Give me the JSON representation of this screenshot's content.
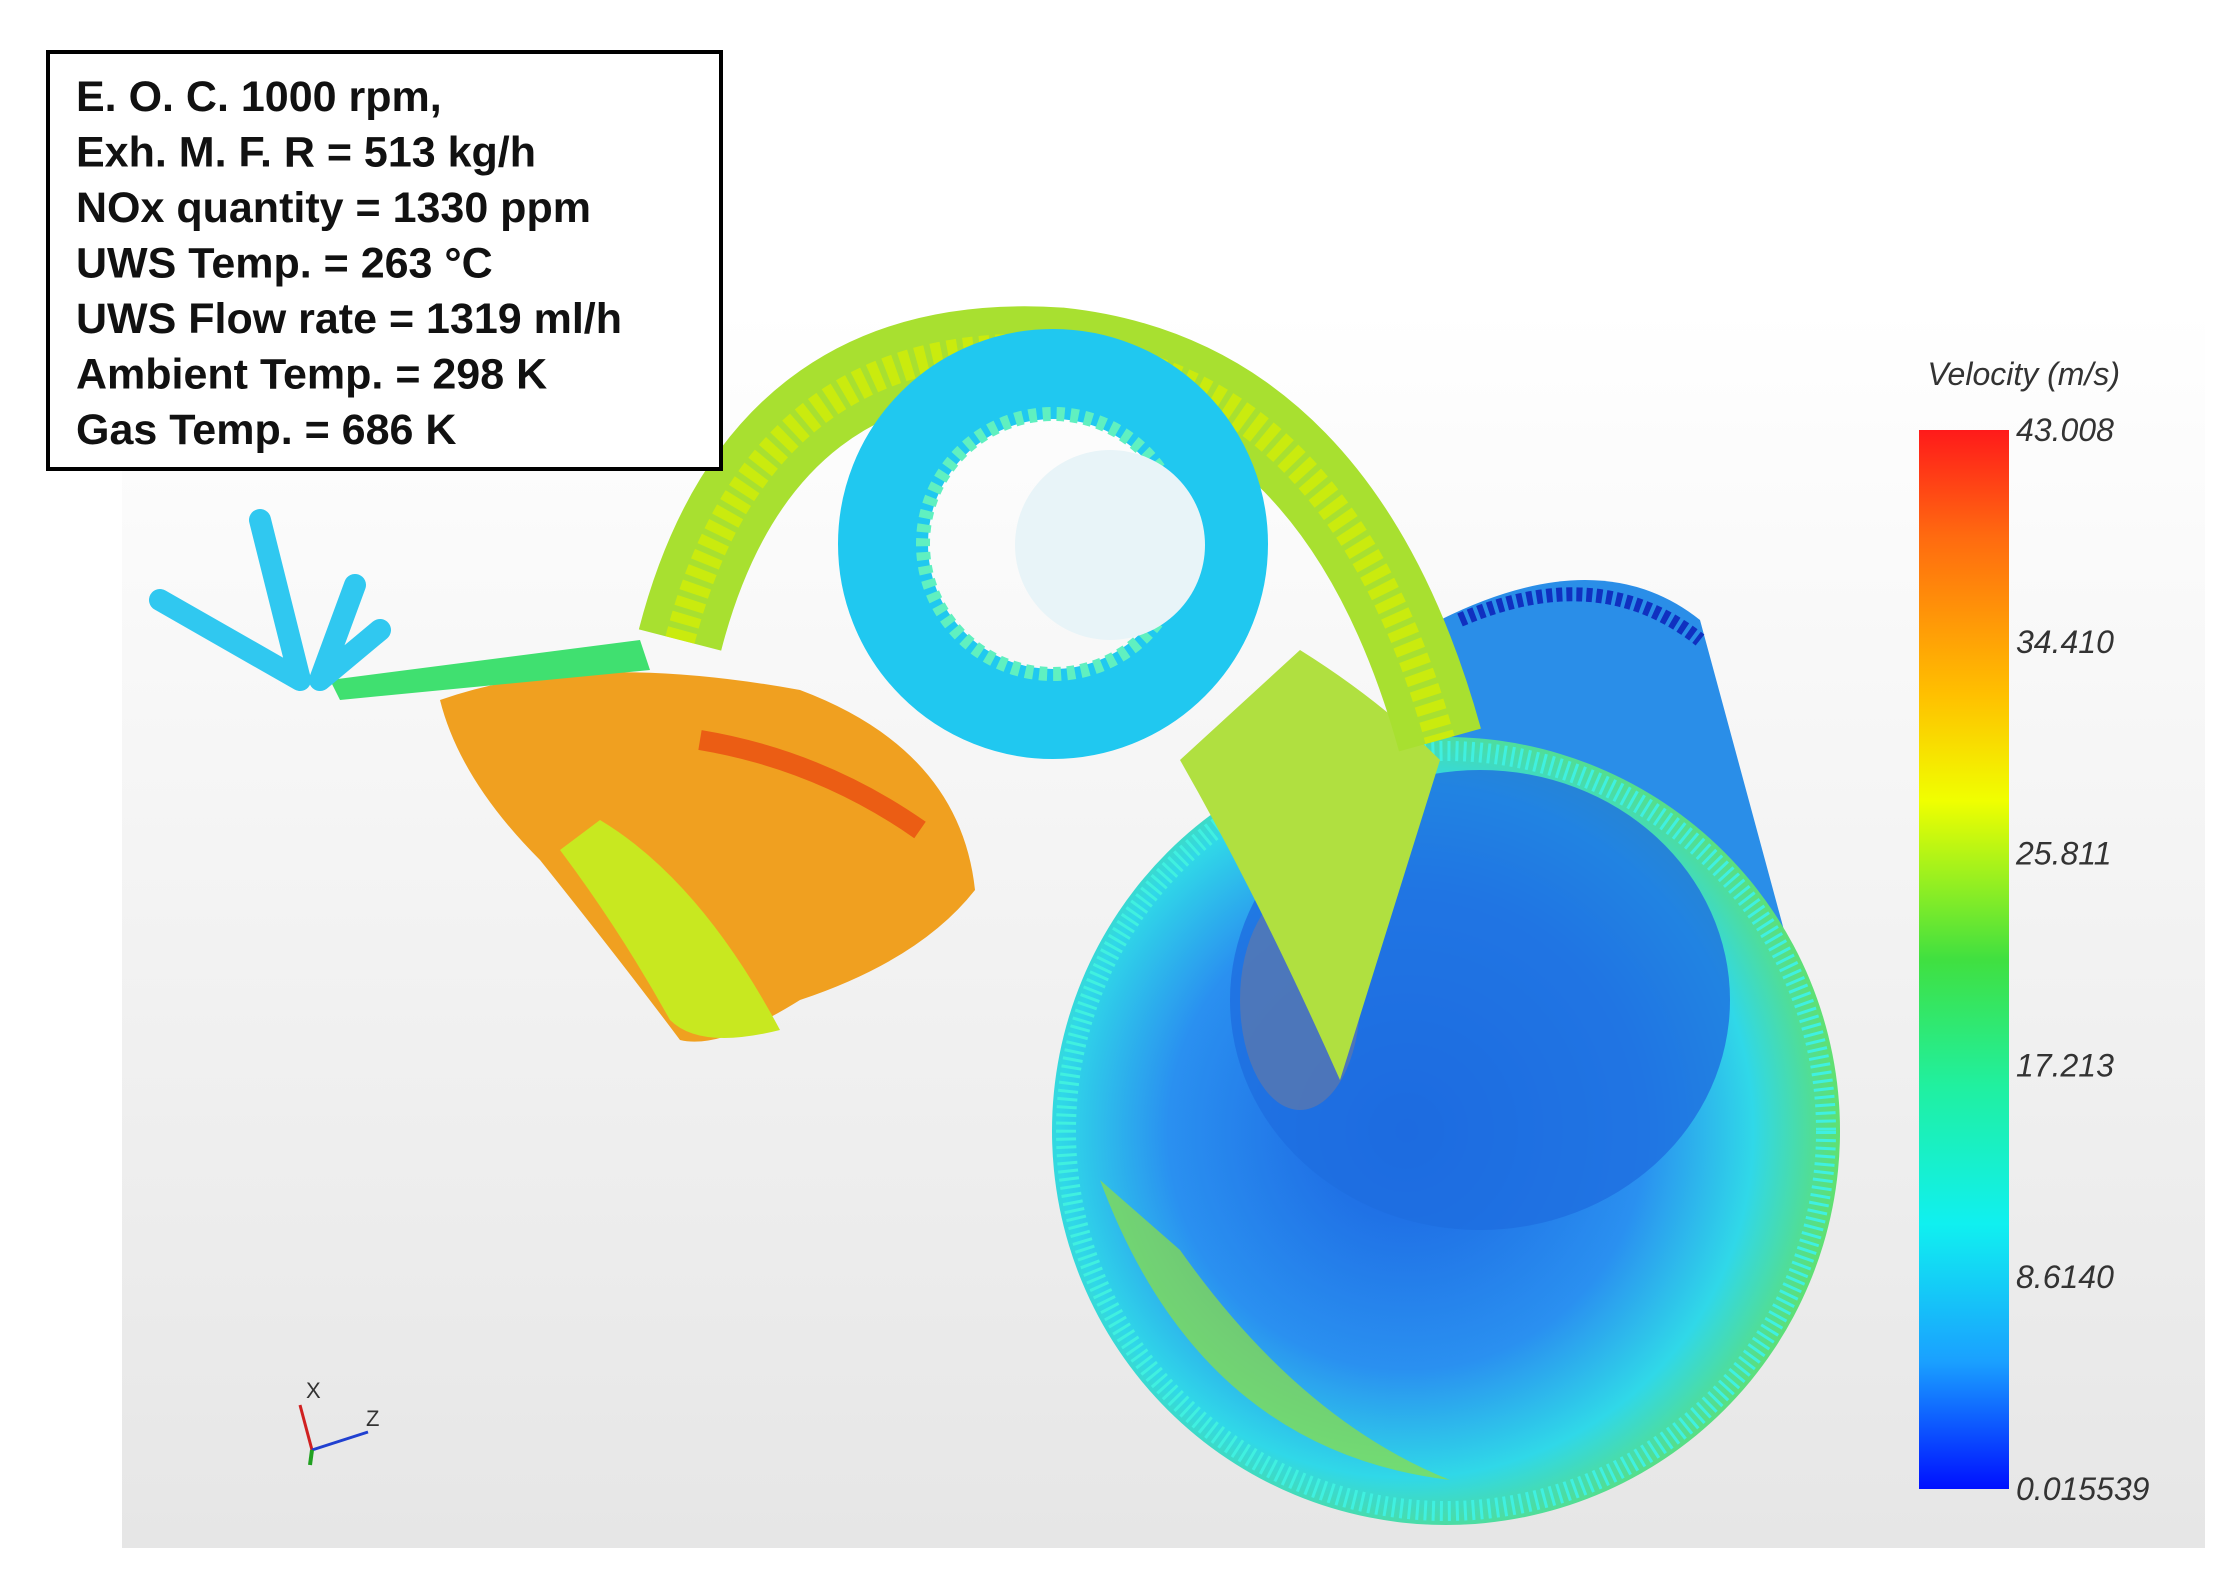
{
  "info_box": {
    "lines": [
      "E. O. C. 1000 rpm,",
      "Exh. M. F. R = 513 kg/h",
      "NOx quantity = 1330 ppm",
      "UWS Temp. = 263 °C",
      "UWS Flow rate = 1319 ml/h",
      "Ambient Temp. = 298 K",
      "Gas Temp. = 686 K"
    ]
  },
  "colorbar": {
    "title": "Velocity (m/s)",
    "ticks": [
      "43.008",
      "34.410",
      "25.811",
      "17.213",
      "8.6140",
      "0.015539"
    ]
  },
  "axes_triad": {
    "labels": [
      "X",
      "Z"
    ]
  }
}
